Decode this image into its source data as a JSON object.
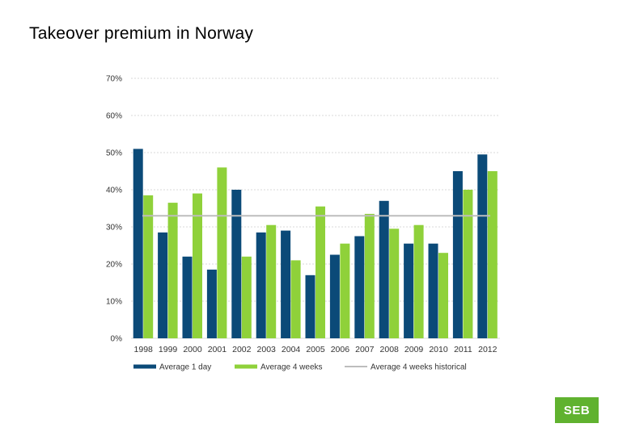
{
  "title": "Takeover premium in Norway",
  "logo_text": "SEB",
  "colors": {
    "series_1": "#0b4a78",
    "series_2": "#8fd13a",
    "series_3": "#bdbdbd",
    "grid": "#d9d9d9",
    "logo": "#60b22f"
  },
  "chart_data": {
    "type": "bar",
    "title": "",
    "xlabel": "",
    "ylabel": "",
    "ylim": [
      0,
      70
    ],
    "yticks": [
      "0%",
      "10%",
      "20%",
      "30%",
      "40%",
      "50%",
      "60%",
      "70%"
    ],
    "ytick_values": [
      0,
      10,
      20,
      30,
      40,
      50,
      60,
      70
    ],
    "categories": [
      "1998",
      "1999",
      "2000",
      "2001",
      "2002",
      "2003",
      "2004",
      "2005",
      "2006",
      "2007",
      "2008",
      "2009",
      "2010",
      "2011",
      "2012"
    ],
    "series": [
      {
        "name": "Average 1 day",
        "type": "bar",
        "values": [
          51,
          28.5,
          22,
          18.5,
          40,
          28.5,
          29,
          17,
          22.5,
          27.5,
          37,
          25.5,
          25.5,
          45,
          49.5
        ]
      },
      {
        "name": "Average 4 weeks",
        "type": "bar",
        "values": [
          38.5,
          36.5,
          39,
          46,
          22,
          30.5,
          21,
          35.5,
          25.5,
          33.5,
          29.5,
          30.5,
          23,
          40,
          45
        ]
      },
      {
        "name": "Average 4 weeks historical",
        "type": "line",
        "values": [
          33,
          33,
          33,
          33,
          33,
          33,
          33,
          33,
          33,
          33,
          33,
          33,
          33,
          33,
          33
        ]
      }
    ],
    "grid": true,
    "legend": "bottom"
  }
}
